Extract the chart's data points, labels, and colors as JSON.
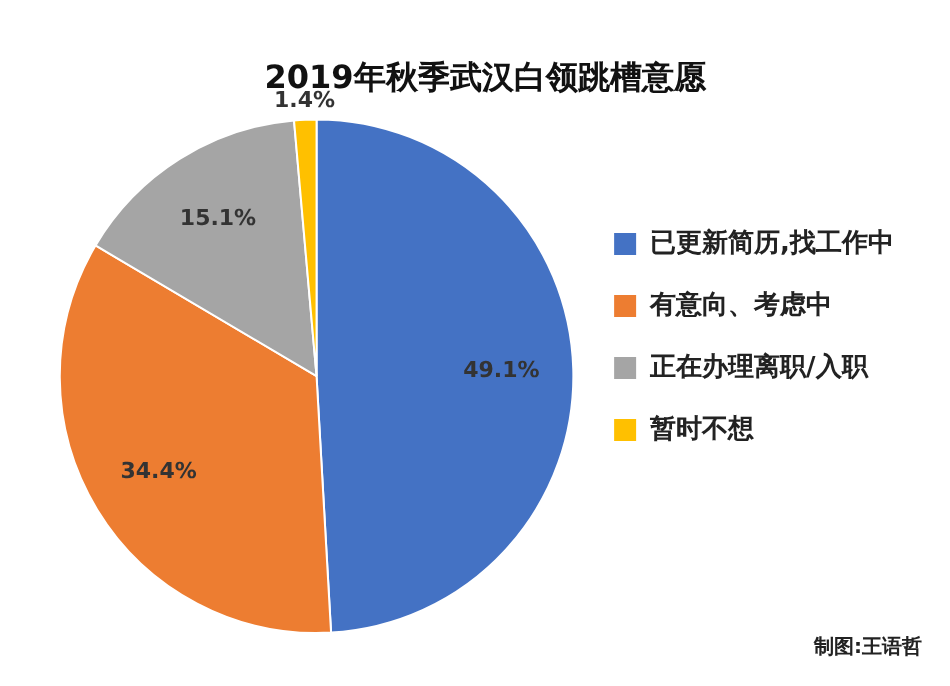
{
  "chart_data": {
    "type": "pie",
    "title": "2019年秋季武汉白领跳槽意愿",
    "categories": [
      "已更新简历,找工作中",
      "有意向、考虑中",
      "正在办理离职/入职",
      "暂时不想"
    ],
    "values": [
      49.1,
      34.4,
      15.1,
      1.4
    ],
    "colors": [
      "#4472c4",
      "#ed7d31",
      "#a5a5a5",
      "#ffc000"
    ],
    "value_labels": [
      "49.1%",
      "34.4%",
      "15.1%",
      "1.4%"
    ],
    "legend": "right",
    "annotations": [
      "制图:王语哲"
    ]
  }
}
